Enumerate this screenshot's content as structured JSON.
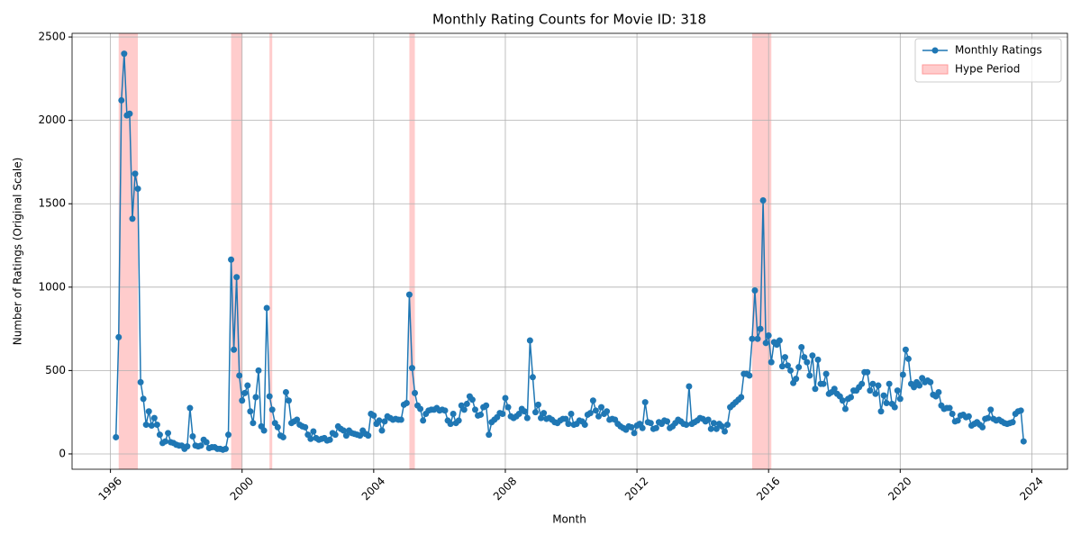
{
  "chart_data": {
    "type": "line",
    "title": "Monthly Rating Counts for Movie ID: 318",
    "x_label": "Month",
    "y_label": "Number of Ratings (Original Scale)",
    "x": [
      "1996-03",
      "1996-04",
      "1996-05",
      "1996-06",
      "1996-07",
      "1996-08",
      "1996-09",
      "1996-10",
      "1996-11",
      "1996-12",
      "1997-01",
      "1997-02",
      "1997-03",
      "1997-04",
      "1997-05",
      "1997-06",
      "1997-07",
      "1997-08",
      "1997-09",
      "1997-10",
      "1997-11",
      "1997-12",
      "1998-01",
      "1998-02",
      "1998-03",
      "1998-04",
      "1998-05",
      "1998-06",
      "1998-07",
      "1998-08",
      "1998-09",
      "1998-10",
      "1998-11",
      "1998-12",
      "1999-01",
      "1999-02",
      "1999-03",
      "1999-04",
      "1999-05",
      "1999-06",
      "1999-07",
      "1999-08",
      "1999-09",
      "1999-10",
      "1999-11",
      "1999-12",
      "2000-01",
      "2000-02",
      "2000-03",
      "2000-04",
      "2000-05",
      "2000-06",
      "2000-07",
      "2000-08",
      "2000-09",
      "2000-10",
      "2000-11",
      "2000-12",
      "2001-01",
      "2001-02",
      "2001-03",
      "2001-04",
      "2001-05",
      "2001-06",
      "2001-07",
      "2001-08",
      "2001-09",
      "2001-10",
      "2001-11",
      "2001-12",
      "2002-01",
      "2002-02",
      "2002-03",
      "2002-04",
      "2002-05",
      "2002-06",
      "2002-07",
      "2002-08",
      "2002-09",
      "2002-10",
      "2002-11",
      "2002-12",
      "2003-01",
      "2003-02",
      "2003-03",
      "2003-04",
      "2003-05",
      "2003-06",
      "2003-07",
      "2003-08",
      "2003-09",
      "2003-10",
      "2003-11",
      "2003-12",
      "2004-01",
      "2004-02",
      "2004-03",
      "2004-04",
      "2004-05",
      "2004-06",
      "2004-07",
      "2004-08",
      "2004-09",
      "2004-10",
      "2004-11",
      "2004-12",
      "2005-01",
      "2005-02",
      "2005-03",
      "2005-04",
      "2005-05",
      "2005-06",
      "2005-07",
      "2005-08",
      "2005-09",
      "2005-10",
      "2005-11",
      "2005-12",
      "2006-01",
      "2006-02",
      "2006-03",
      "2006-04",
      "2006-05",
      "2006-06",
      "2006-07",
      "2006-08",
      "2006-09",
      "2006-10",
      "2006-11",
      "2006-12",
      "2007-01",
      "2007-02",
      "2007-03",
      "2007-04",
      "2007-05",
      "2007-06",
      "2007-07",
      "2007-08",
      "2007-09",
      "2007-10",
      "2007-11",
      "2007-12",
      "2008-01",
      "2008-02",
      "2008-03",
      "2008-04",
      "2008-05",
      "2008-06",
      "2008-07",
      "2008-08",
      "2008-09",
      "2008-10",
      "2008-11",
      "2008-12",
      "2009-01",
      "2009-02",
      "2009-03",
      "2009-04",
      "2009-05",
      "2009-06",
      "2009-07",
      "2009-08",
      "2009-09",
      "2009-10",
      "2009-11",
      "2009-12",
      "2010-01",
      "2010-02",
      "2010-03",
      "2010-04",
      "2010-05",
      "2010-06",
      "2010-07",
      "2010-08",
      "2010-09",
      "2010-10",
      "2010-11",
      "2010-12",
      "2011-01",
      "2011-02",
      "2011-03",
      "2011-04",
      "2011-05",
      "2011-06",
      "2011-07",
      "2011-08",
      "2011-09",
      "2011-10",
      "2011-11",
      "2011-12",
      "2012-01",
      "2012-02",
      "2012-03",
      "2012-04",
      "2012-05",
      "2012-06",
      "2012-07",
      "2012-08",
      "2012-09",
      "2012-10",
      "2012-11",
      "2012-12",
      "2013-01",
      "2013-02",
      "2013-03",
      "2013-04",
      "2013-05",
      "2013-06",
      "2013-07",
      "2013-08",
      "2013-09",
      "2013-10",
      "2013-11",
      "2013-12",
      "2014-01",
      "2014-02",
      "2014-03",
      "2014-04",
      "2014-05",
      "2014-06",
      "2014-07",
      "2014-08",
      "2014-09",
      "2014-10",
      "2014-11",
      "2014-12",
      "2015-01",
      "2015-02",
      "2015-03",
      "2015-04",
      "2015-05",
      "2015-06",
      "2015-07",
      "2015-08",
      "2015-09",
      "2015-10",
      "2015-11",
      "2015-12",
      "2016-01",
      "2016-02",
      "2016-03",
      "2016-04",
      "2016-05",
      "2016-06",
      "2016-07",
      "2016-08",
      "2016-09",
      "2016-10",
      "2016-11",
      "2016-12",
      "2017-01",
      "2017-02",
      "2017-03",
      "2017-04",
      "2017-05",
      "2017-06",
      "2017-07",
      "2017-08",
      "2017-09",
      "2017-10",
      "2017-11",
      "2017-12",
      "2018-01",
      "2018-02",
      "2018-03",
      "2018-04",
      "2018-05",
      "2018-06",
      "2018-07",
      "2018-08",
      "2018-09",
      "2018-10",
      "2018-11",
      "2018-12",
      "2019-01",
      "2019-02",
      "2019-03",
      "2019-04",
      "2019-05",
      "2019-06",
      "2019-07",
      "2019-08",
      "2019-09",
      "2019-10",
      "2019-11",
      "2019-12",
      "2020-01",
      "2020-02",
      "2020-03",
      "2020-04",
      "2020-05",
      "2020-06",
      "2020-07",
      "2020-08",
      "2020-09",
      "2020-10",
      "2020-11",
      "2020-12",
      "2021-01",
      "2021-02",
      "2021-03",
      "2021-04",
      "2021-05",
      "2021-06",
      "2021-07",
      "2021-08",
      "2021-09",
      "2021-10",
      "2021-11",
      "2021-12",
      "2022-01",
      "2022-02",
      "2022-03",
      "2022-04",
      "2022-05",
      "2022-06",
      "2022-07",
      "2022-08",
      "2022-09",
      "2022-10",
      "2022-11",
      "2022-12",
      "2023-01",
      "2023-02",
      "2023-03",
      "2023-04",
      "2023-05",
      "2023-06",
      "2023-07",
      "2023-08",
      "2023-09",
      "2023-10"
    ],
    "series": [
      {
        "name": "Monthly Ratings",
        "color": "#1f77b4",
        "values": [
          100,
          700,
          2120,
          2400,
          2030,
          2040,
          1410,
          1680,
          1590,
          430,
          330,
          175,
          255,
          170,
          215,
          175,
          115,
          65,
          75,
          125,
          70,
          65,
          55,
          50,
          50,
          30,
          45,
          275,
          105,
          50,
          45,
          50,
          85,
          70,
          35,
          40,
          40,
          30,
          30,
          25,
          30,
          115,
          1165,
          625,
          1060,
          470,
          320,
          365,
          410,
          255,
          185,
          340,
          500,
          165,
          140,
          875,
          345,
          265,
          185,
          160,
          110,
          100,
          370,
          320,
          185,
          195,
          205,
          175,
          165,
          160,
          115,
          90,
          135,
          95,
          85,
          90,
          95,
          80,
          85,
          125,
          115,
          165,
          150,
          140,
          110,
          140,
          125,
          120,
          115,
          110,
          140,
          120,
          110,
          240,
          230,
          180,
          200,
          140,
          195,
          225,
          215,
          205,
          210,
          205,
          205,
          295,
          305,
          955,
          515,
          365,
          290,
          270,
          200,
          240,
          260,
          265,
          265,
          275,
          260,
          265,
          260,
          200,
          180,
          240,
          185,
          200,
          290,
          265,
          300,
          345,
          325,
          265,
          230,
          235,
          280,
          290,
          115,
          190,
          205,
          220,
          245,
          240,
          335,
          280,
          225,
          215,
          225,
          240,
          270,
          255,
          215,
          680,
          460,
          250,
          295,
          215,
          245,
          210,
          215,
          205,
          190,
          185,
          200,
          210,
          210,
          180,
          240,
          175,
          180,
          200,
          195,
          175,
          235,
          245,
          320,
          260,
          225,
          280,
          240,
          255,
          205,
          210,
          205,
          180,
          165,
          155,
          145,
          165,
          160,
          125,
          170,
          180,
          155,
          310,
          190,
          185,
          150,
          155,
          190,
          180,
          200,
          195,
          155,
          165,
          185,
          205,
          195,
          180,
          175,
          405,
          180,
          190,
          200,
          215,
          210,
          195,
          205,
          150,
          185,
          150,
          180,
          165,
          135,
          175,
          280,
          295,
          310,
          325,
          340,
          480,
          480,
          470,
          690,
          980,
          690,
          750,
          1520,
          665,
          710,
          550,
          670,
          655,
          680,
          525,
          580,
          530,
          500,
          425,
          450,
          520,
          640,
          580,
          550,
          470,
          590,
          390,
          565,
          420,
          420,
          480,
          360,
          370,
          390,
          360,
          345,
          320,
          270,
          330,
          340,
          380,
          380,
          400,
          420,
          490,
          490,
          380,
          420,
          360,
          410,
          255,
          350,
          305,
          420,
          300,
          280,
          380,
          330,
          475,
          625,
          570,
          420,
          400,
          430,
          410,
          455,
          430,
          440,
          430,
          355,
          345,
          370,
          290,
          270,
          275,
          275,
          240,
          195,
          200,
          230,
          235,
          220,
          225,
          170,
          180,
          190,
          175,
          160,
          210,
          215,
          265,
          210,
          200,
          205,
          195,
          185,
          180,
          185,
          190,
          240,
          255,
          260,
          75
        ]
      }
    ],
    "hype_periods": [
      {
        "start": "1996-04",
        "end": "1996-11"
      },
      {
        "start": "1999-09",
        "end": "2000-01"
      },
      {
        "start": "2000-11",
        "end": "2000-12"
      },
      {
        "start": "2005-02",
        "end": "2005-04"
      },
      {
        "start": "2015-07",
        "end": "2016-02"
      }
    ],
    "hype_name": "Hype Period",
    "hype_color": "#ff9999",
    "xlim": [
      "1994-11",
      "2025-02"
    ],
    "xticks": [
      {
        "value": "1996-01",
        "label": "1996"
      },
      {
        "value": "2000-01",
        "label": "2000"
      },
      {
        "value": "2004-01",
        "label": "2004"
      },
      {
        "value": "2008-01",
        "label": "2008"
      },
      {
        "value": "2012-01",
        "label": "2012"
      },
      {
        "value": "2016-01",
        "label": "2016"
      },
      {
        "value": "2020-01",
        "label": "2020"
      },
      {
        "value": "2024-01",
        "label": "2024"
      }
    ],
    "ylim": [
      -92,
      2522
    ],
    "yticks": [
      0,
      500,
      1000,
      1500,
      2000,
      2500
    ],
    "grid": true,
    "legend": "upper right"
  }
}
